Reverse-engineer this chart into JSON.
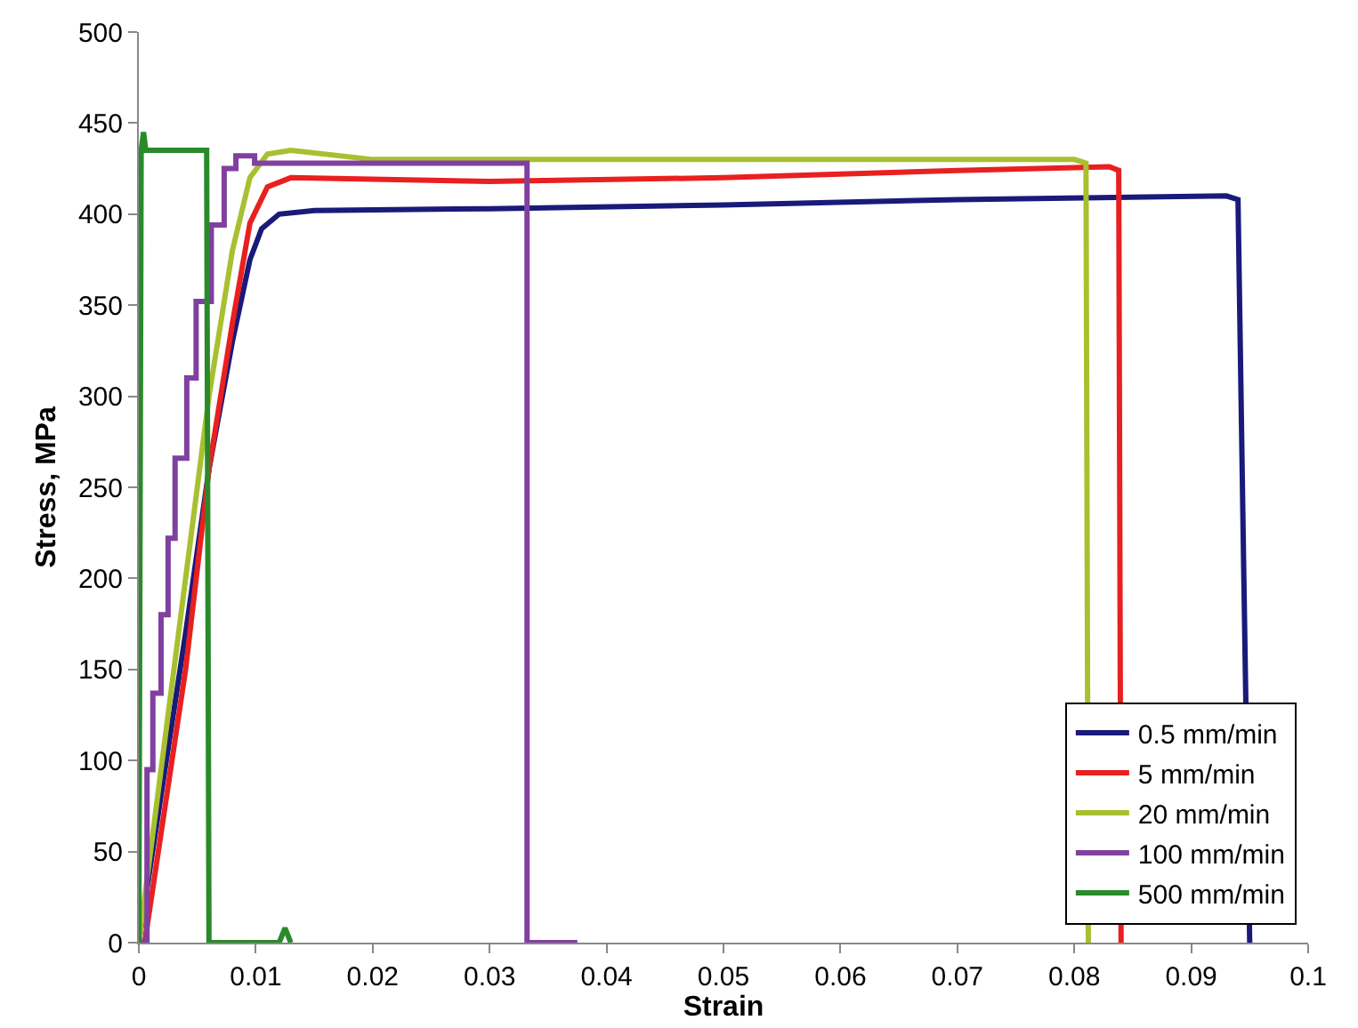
{
  "chart_data": {
    "type": "line",
    "xlabel": "Strain",
    "ylabel": "Stress, MPa",
    "xlim": [
      0,
      0.1
    ],
    "xticks": [
      0,
      0.01,
      0.02,
      0.03,
      0.04,
      0.05,
      0.06,
      0.07,
      0.08,
      0.09,
      0.1
    ],
    "ylim": [
      0,
      500
    ],
    "yticks": [
      0,
      50,
      100,
      150,
      200,
      250,
      300,
      350,
      400,
      450,
      500
    ],
    "grid": false,
    "legend": "bottom right",
    "line_style": "solid",
    "series": [
      {
        "name": "0.5 mm/min",
        "color": "#1a1a7a",
        "x": [
          0,
          0.004,
          0.006,
          0.008,
          0.0095,
          0.0105,
          0.012,
          0.015,
          0.03,
          0.05,
          0.07,
          0.093,
          0.094,
          0.0945,
          0.095
        ],
        "values": [
          0,
          170,
          260,
          330,
          375,
          392,
          400,
          402,
          403,
          405,
          408,
          410,
          408,
          200,
          0
        ]
      },
      {
        "name": "5 mm/min",
        "color": "#e82020",
        "x": [
          0.0005,
          0.004,
          0.006,
          0.008,
          0.0095,
          0.011,
          0.013,
          0.03,
          0.05,
          0.07,
          0.083,
          0.0838,
          0.084
        ],
        "values": [
          0,
          150,
          260,
          340,
          395,
          415,
          420,
          418,
          420,
          424,
          426,
          424,
          0
        ]
      },
      {
        "name": "20 mm/min",
        "color": "#a8c030",
        "x": [
          0,
          0.003,
          0.006,
          0.008,
          0.0095,
          0.011,
          0.013,
          0.02,
          0.05,
          0.08,
          0.081,
          0.0812
        ],
        "values": [
          0,
          150,
          300,
          380,
          420,
          433,
          435,
          430,
          430,
          430,
          428,
          0
        ]
      },
      {
        "name": "100 mm/min",
        "color": "#8040a0",
        "type": "step",
        "x": [
          0,
          0.0007,
          0.0012,
          0.0019,
          0.0025,
          0.0031,
          0.0041,
          0.0049,
          0.0062,
          0.0073,
          0.0083,
          0.0099,
          0.033,
          0.0332,
          0.0375
        ],
        "values": [
          0,
          95,
          137,
          180,
          222,
          266,
          310,
          352,
          394,
          425,
          432,
          428,
          428,
          0,
          0
        ]
      },
      {
        "name": "500 mm/min",
        "color": "#2a8a2a",
        "x": [
          0,
          0.0002,
          0.0004,
          0.0006,
          0.0008,
          0.0058,
          0.006,
          0.012,
          0.0125,
          0.013
        ],
        "values": [
          0,
          435,
          445,
          435,
          435,
          435,
          0,
          0,
          8,
          0
        ]
      }
    ]
  }
}
